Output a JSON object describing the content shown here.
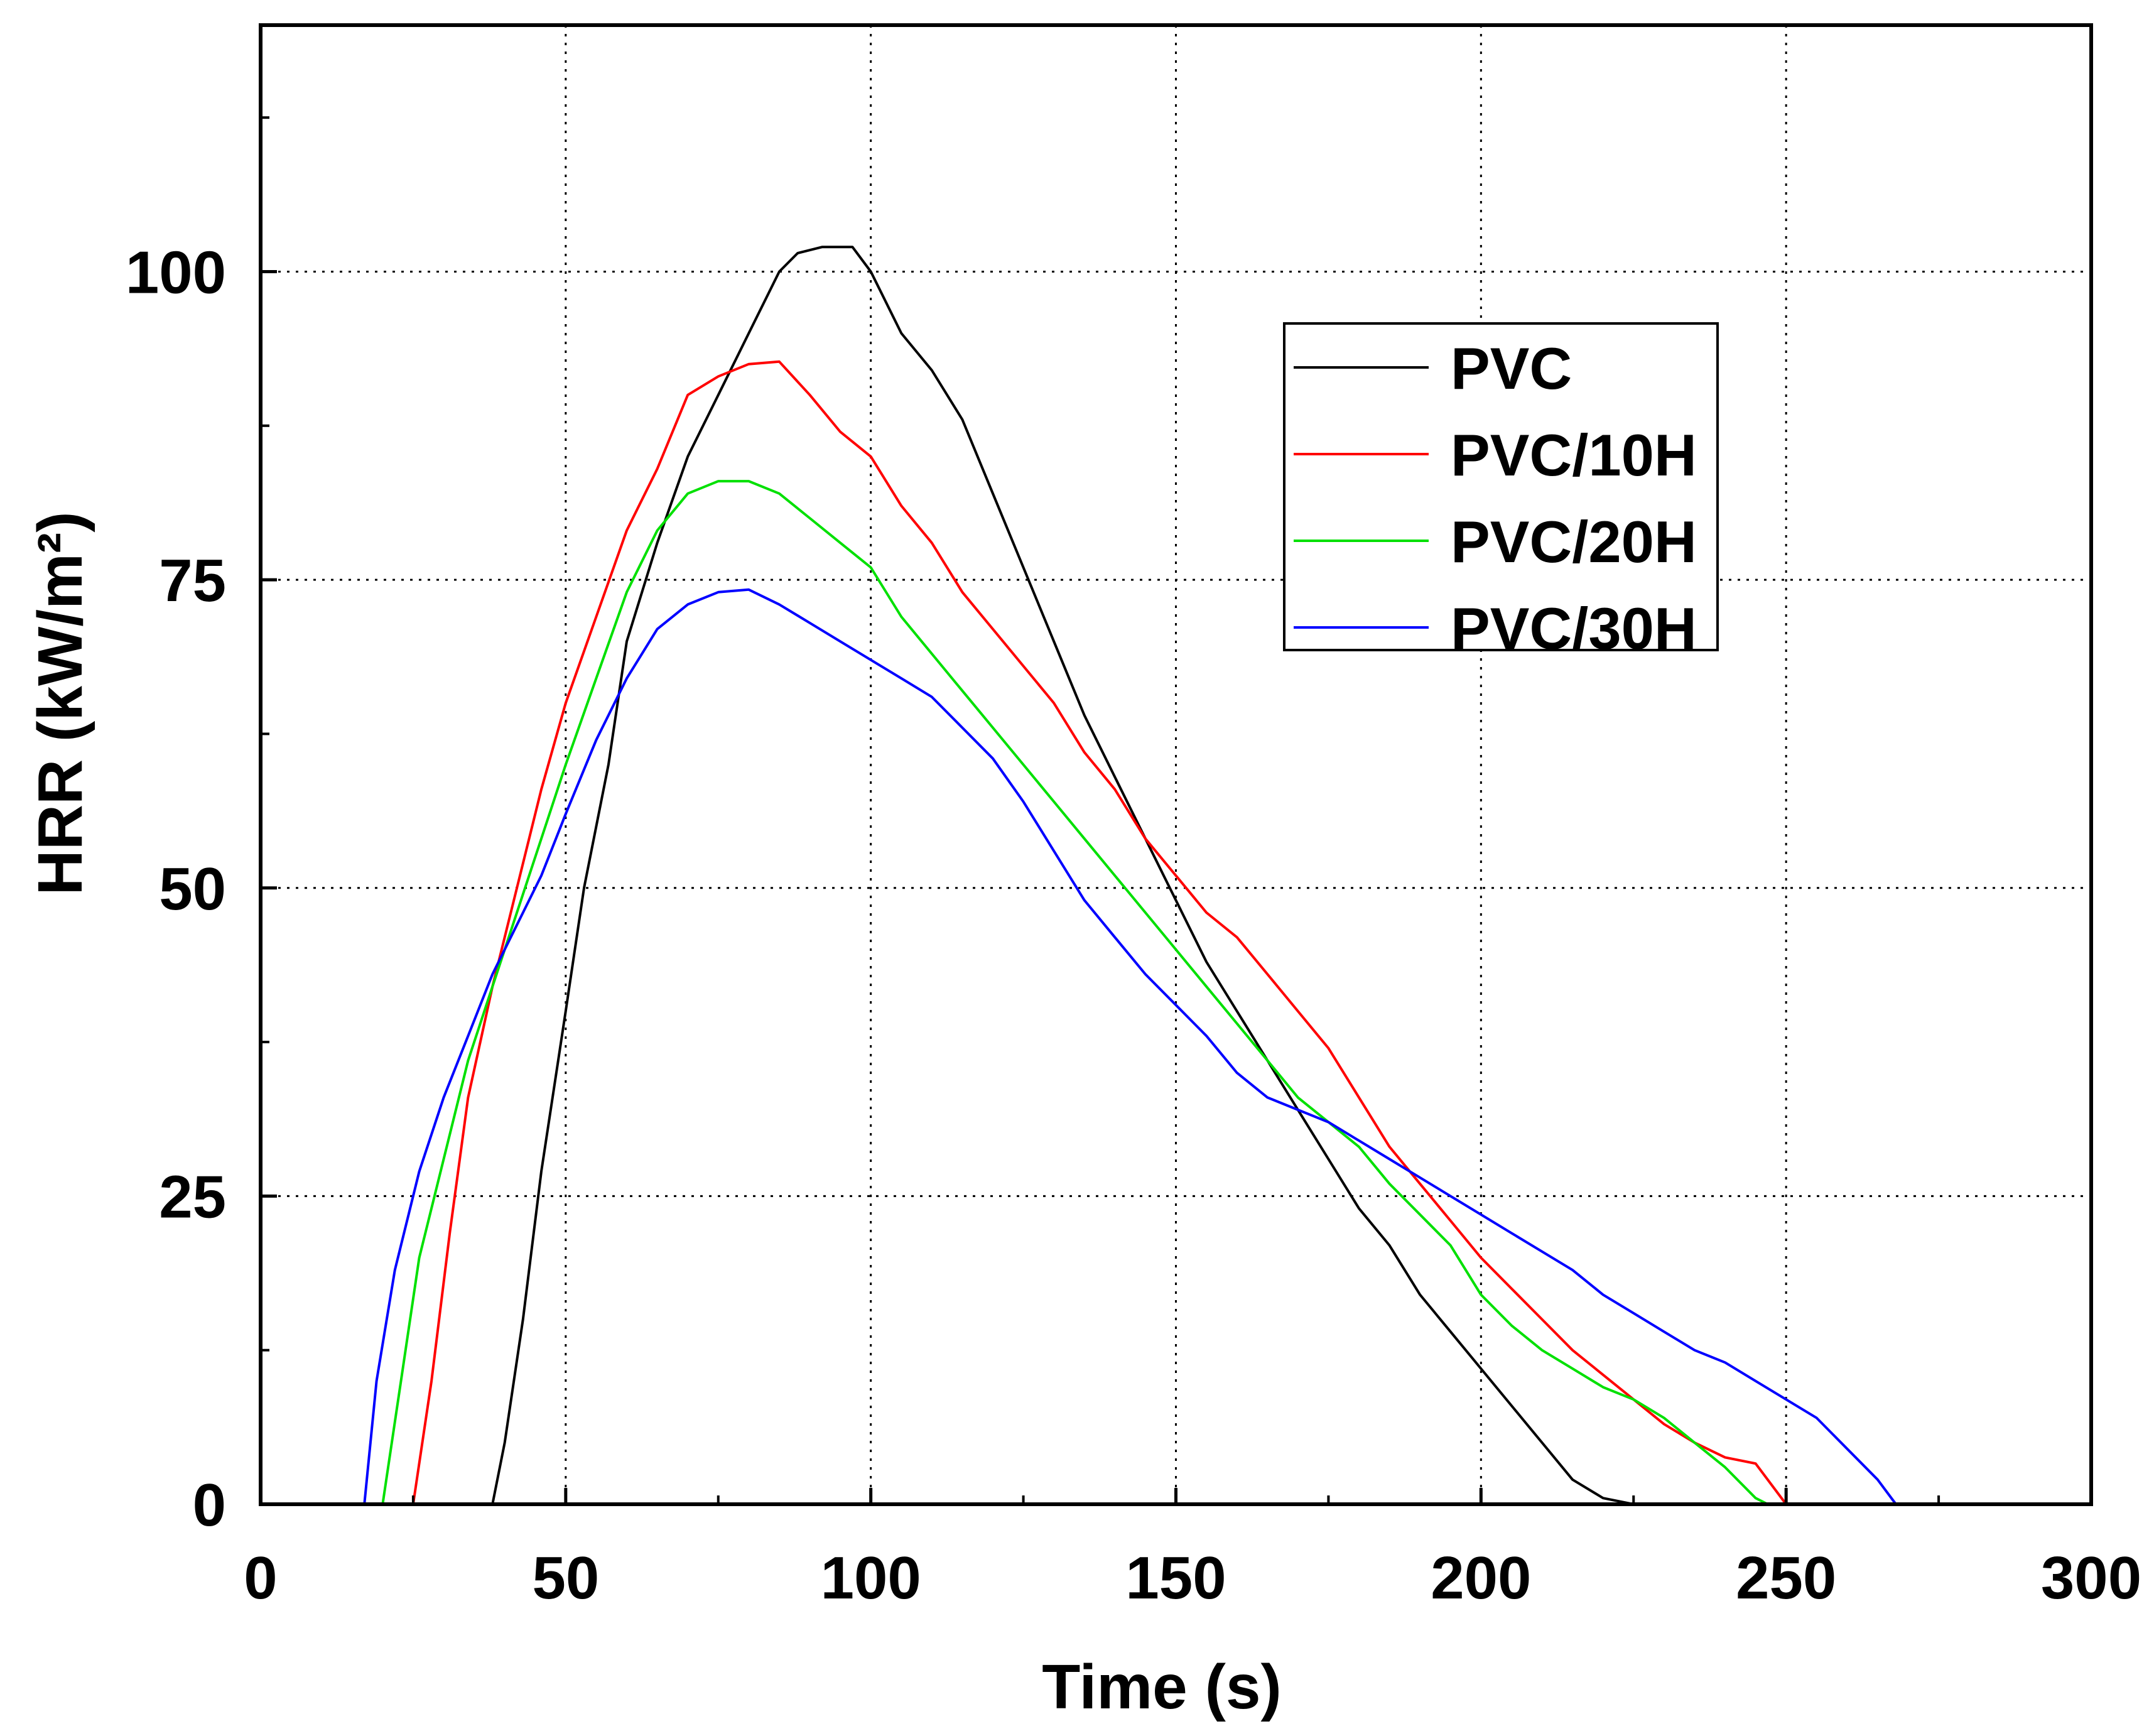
{
  "chart_data": {
    "type": "line",
    "title": "",
    "xlabel": "Time (s)",
    "ylabel": "HRR (kW/m²)",
    "xlim": [
      0,
      300
    ],
    "ylim": [
      0,
      120
    ],
    "xticks": [
      0,
      50,
      100,
      150,
      200,
      250,
      300
    ],
    "yticks": [
      0,
      25,
      50,
      75,
      100
    ],
    "x_tick_labels": [
      "0",
      "50",
      "100",
      "150",
      "200",
      "250",
      "300"
    ],
    "y_tick_labels": [
      "0",
      "25",
      "50",
      "75",
      "100"
    ],
    "grid": true,
    "legend_position": "top-right",
    "series": [
      {
        "name": "PVC",
        "color": "#000000",
        "points": [
          [
            0,
            0
          ],
          [
            38,
            0
          ],
          [
            40,
            5
          ],
          [
            43,
            15
          ],
          [
            46,
            27
          ],
          [
            50,
            40
          ],
          [
            53,
            50
          ],
          [
            57,
            60
          ],
          [
            60,
            70
          ],
          [
            65,
            78
          ],
          [
            70,
            85
          ],
          [
            75,
            90
          ],
          [
            80,
            95
          ],
          [
            85,
            100
          ],
          [
            88,
            101.5
          ],
          [
            92,
            102
          ],
          [
            97,
            102
          ],
          [
            100,
            100
          ],
          [
            105,
            95
          ],
          [
            110,
            92
          ],
          [
            115,
            88
          ],
          [
            120,
            82
          ],
          [
            125,
            76
          ],
          [
            130,
            70
          ],
          [
            135,
            64
          ],
          [
            140,
            59
          ],
          [
            145,
            54
          ],
          [
            150,
            49
          ],
          [
            155,
            44
          ],
          [
            160,
            40
          ],
          [
            165,
            36
          ],
          [
            170,
            32
          ],
          [
            175,
            28
          ],
          [
            180,
            24
          ],
          [
            185,
            21
          ],
          [
            190,
            17
          ],
          [
            195,
            14
          ],
          [
            200,
            11
          ],
          [
            205,
            8
          ],
          [
            210,
            5
          ],
          [
            215,
            2
          ],
          [
            220,
            0.5
          ],
          [
            225,
            0
          ]
        ]
      },
      {
        "name": "PVC/10H",
        "color": "#ff0000",
        "points": [
          [
            0,
            0
          ],
          [
            25,
            0
          ],
          [
            28,
            10
          ],
          [
            31,
            22
          ],
          [
            34,
            33
          ],
          [
            38,
            42
          ],
          [
            42,
            50
          ],
          [
            46,
            58
          ],
          [
            50,
            65
          ],
          [
            55,
            72
          ],
          [
            60,
            79
          ],
          [
            65,
            84
          ],
          [
            70,
            90
          ],
          [
            75,
            91.5
          ],
          [
            80,
            92.5
          ],
          [
            85,
            92.7
          ],
          [
            90,
            90
          ],
          [
            95,
            87
          ],
          [
            100,
            85
          ],
          [
            105,
            81
          ],
          [
            110,
            78
          ],
          [
            115,
            74
          ],
          [
            120,
            71
          ],
          [
            125,
            68
          ],
          [
            130,
            65
          ],
          [
            135,
            61
          ],
          [
            140,
            58
          ],
          [
            145,
            54
          ],
          [
            150,
            51
          ],
          [
            155,
            48
          ],
          [
            160,
            46
          ],
          [
            165,
            43
          ],
          [
            170,
            40
          ],
          [
            175,
            37
          ],
          [
            180,
            33
          ],
          [
            185,
            29
          ],
          [
            190,
            26
          ],
          [
            195,
            23
          ],
          [
            200,
            20
          ],
          [
            205,
            17.5
          ],
          [
            210,
            15
          ],
          [
            215,
            12.5
          ],
          [
            220,
            10.5
          ],
          [
            225,
            8.5
          ],
          [
            230,
            6.5
          ],
          [
            235,
            5
          ],
          [
            240,
            3.8
          ],
          [
            245,
            3.3
          ],
          [
            250,
            0
          ]
        ]
      },
      {
        "name": "PVC/20H",
        "color": "#00e000",
        "points": [
          [
            0,
            0
          ],
          [
            20,
            0
          ],
          [
            23,
            10
          ],
          [
            26,
            20
          ],
          [
            30,
            28
          ],
          [
            34,
            36
          ],
          [
            38,
            42
          ],
          [
            42,
            48
          ],
          [
            46,
            54
          ],
          [
            50,
            60
          ],
          [
            55,
            67
          ],
          [
            60,
            74
          ],
          [
            65,
            79
          ],
          [
            70,
            82
          ],
          [
            75,
            83
          ],
          [
            80,
            83
          ],
          [
            85,
            82
          ],
          [
            90,
            80
          ],
          [
            95,
            78
          ],
          [
            100,
            76
          ],
          [
            105,
            72
          ],
          [
            110,
            69
          ],
          [
            115,
            66
          ],
          [
            120,
            63
          ],
          [
            125,
            60
          ],
          [
            130,
            57
          ],
          [
            135,
            54
          ],
          [
            140,
            51
          ],
          [
            145,
            48
          ],
          [
            150,
            45
          ],
          [
            155,
            42
          ],
          [
            160,
            39
          ],
          [
            165,
            36
          ],
          [
            170,
            33
          ],
          [
            175,
            31
          ],
          [
            180,
            29
          ],
          [
            185,
            26
          ],
          [
            190,
            23.5
          ],
          [
            195,
            21
          ],
          [
            200,
            17
          ],
          [
            205,
            14.5
          ],
          [
            210,
            12.5
          ],
          [
            215,
            11
          ],
          [
            220,
            9.5
          ],
          [
            225,
            8.5
          ],
          [
            230,
            7
          ],
          [
            235,
            5
          ],
          [
            240,
            3
          ],
          [
            245,
            0.5
          ],
          [
            247,
            0
          ]
        ]
      },
      {
        "name": "PVC/30H",
        "color": "#0000ff",
        "points": [
          [
            0,
            0
          ],
          [
            17,
            0
          ],
          [
            19,
            10
          ],
          [
            22,
            19
          ],
          [
            26,
            27
          ],
          [
            30,
            33
          ],
          [
            34,
            38
          ],
          [
            38,
            43
          ],
          [
            42,
            47
          ],
          [
            46,
            51
          ],
          [
            50,
            56
          ],
          [
            55,
            62
          ],
          [
            60,
            67
          ],
          [
            65,
            71
          ],
          [
            70,
            73
          ],
          [
            75,
            74
          ],
          [
            80,
            74.2
          ],
          [
            85,
            73
          ],
          [
            90,
            71.5
          ],
          [
            95,
            70
          ],
          [
            100,
            68.5
          ],
          [
            105,
            67
          ],
          [
            110,
            65.5
          ],
          [
            115,
            63
          ],
          [
            120,
            60.5
          ],
          [
            125,
            57
          ],
          [
            130,
            53
          ],
          [
            135,
            49
          ],
          [
            140,
            46
          ],
          [
            145,
            43
          ],
          [
            150,
            40.5
          ],
          [
            155,
            38
          ],
          [
            160,
            35
          ],
          [
            165,
            33
          ],
          [
            170,
            32
          ],
          [
            175,
            31
          ],
          [
            180,
            29.5
          ],
          [
            185,
            28
          ],
          [
            190,
            26.5
          ],
          [
            195,
            25
          ],
          [
            200,
            23.5
          ],
          [
            205,
            22
          ],
          [
            210,
            20.5
          ],
          [
            215,
            19
          ],
          [
            220,
            17
          ],
          [
            225,
            15.5
          ],
          [
            230,
            14
          ],
          [
            235,
            12.5
          ],
          [
            240,
            11.5
          ],
          [
            245,
            10
          ],
          [
            250,
            8.5
          ],
          [
            255,
            7
          ],
          [
            260,
            4.5
          ],
          [
            265,
            2
          ],
          [
            268,
            0
          ]
        ]
      }
    ]
  }
}
